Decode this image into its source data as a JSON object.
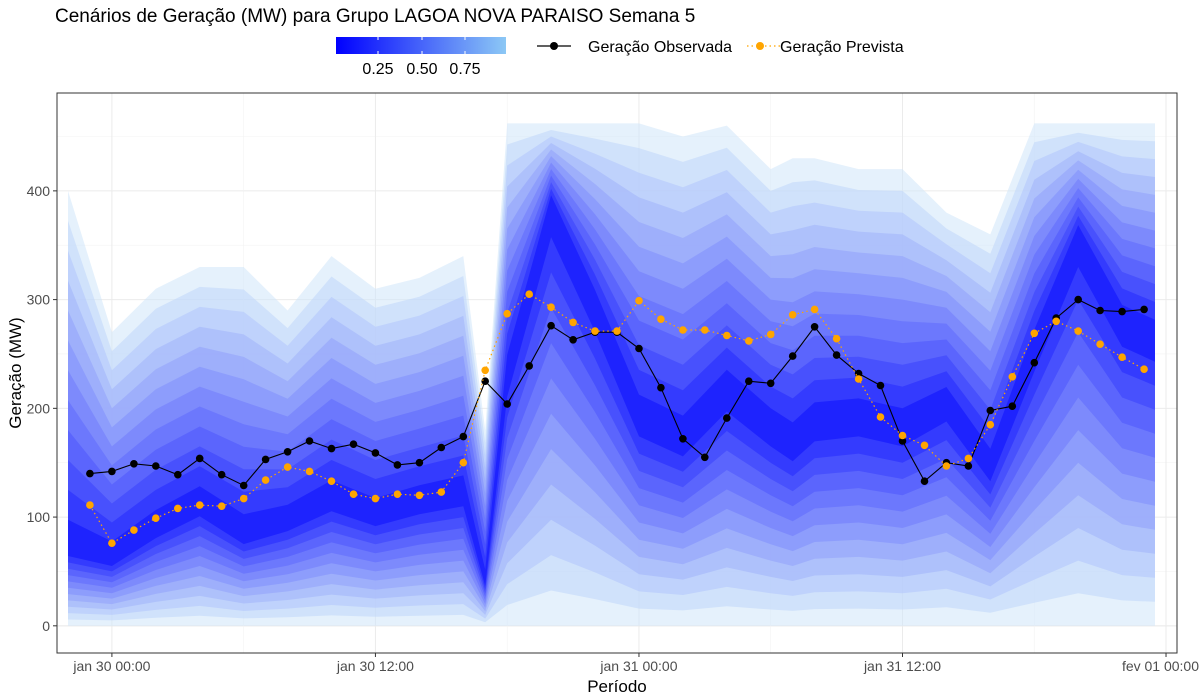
{
  "chart_data": {
    "type": "line",
    "title": "Cenários de Geração (MW) para Grupo LAGOA NOVA PARAISO Semana 5",
    "xlabel": "Período",
    "ylabel": "Geração (MW)",
    "ylim": [
      -25,
      490
    ],
    "y_ticks": [
      0,
      100,
      200,
      300,
      400
    ],
    "x_range_hours": [
      -2.5,
      48.5
    ],
    "x_ticks": [
      {
        "hour": 0,
        "label": "jan 30 00:00"
      },
      {
        "hour": 12,
        "label": "jan 30 12:00"
      },
      {
        "hour": 24,
        "label": "jan 31 00:00"
      },
      {
        "hour": 36,
        "label": "jan 31 12:00"
      },
      {
        "hour": 48,
        "label": "fev 01 00:00"
      }
    ],
    "grid": true,
    "legend": {
      "placement": "top",
      "colorbar_ticks": [
        "0.25",
        "0.50",
        "0.75"
      ],
      "colorbar_colors": [
        "#0000ff",
        "#8cc8f5"
      ]
    },
    "series": [
      {
        "name": "Geração Observada",
        "color": "#000000",
        "style": "solid",
        "points": [
          [
            -1.0,
            140
          ],
          [
            0,
            142
          ],
          [
            1,
            149
          ],
          [
            2,
            147
          ],
          [
            3,
            139
          ],
          [
            4,
            154
          ],
          [
            5,
            139
          ],
          [
            6,
            129
          ],
          [
            7,
            153
          ],
          [
            8,
            160
          ],
          [
            9,
            170
          ],
          [
            10,
            163
          ],
          [
            11,
            167
          ],
          [
            12,
            159
          ],
          [
            13,
            148
          ],
          [
            14,
            150
          ],
          [
            15,
            164
          ],
          [
            16,
            174
          ],
          [
            17,
            225
          ],
          [
            18,
            204
          ],
          [
            19,
            239
          ],
          [
            20,
            276
          ],
          [
            21,
            263
          ],
          [
            22,
            270
          ],
          [
            23,
            270
          ],
          [
            24,
            255
          ],
          [
            25,
            219
          ],
          [
            26,
            172
          ],
          [
            27,
            155
          ],
          [
            28,
            191
          ],
          [
            29,
            225
          ],
          [
            30,
            223
          ],
          [
            31,
            248
          ],
          [
            32,
            275
          ],
          [
            33,
            249
          ],
          [
            34,
            232
          ],
          [
            35,
            221
          ],
          [
            36,
            170
          ],
          [
            37,
            133
          ],
          [
            38,
            150
          ],
          [
            39,
            147
          ],
          [
            40,
            198
          ],
          [
            41,
            202
          ],
          [
            42,
            242
          ],
          [
            43,
            283
          ],
          [
            44,
            300
          ],
          [
            45,
            290
          ],
          [
            46,
            289
          ],
          [
            47,
            291
          ]
        ]
      },
      {
        "name": "Geração Prevista",
        "color": "#ffa500",
        "style": "dotted",
        "points": [
          [
            -1.0,
            111
          ],
          [
            0,
            76
          ],
          [
            1,
            88
          ],
          [
            2,
            99
          ],
          [
            3,
            108
          ],
          [
            4,
            111
          ],
          [
            5,
            110
          ],
          [
            6,
            117
          ],
          [
            7,
            134
          ],
          [
            8,
            146
          ],
          [
            9,
            142
          ],
          [
            10,
            133
          ],
          [
            11,
            121
          ],
          [
            12,
            117
          ],
          [
            13,
            121
          ],
          [
            14,
            120
          ],
          [
            15,
            123
          ],
          [
            16,
            150
          ],
          [
            17,
            235
          ],
          [
            18,
            287
          ],
          [
            19,
            305
          ],
          [
            20,
            293
          ],
          [
            21,
            279
          ],
          [
            22,
            271
          ],
          [
            23,
            271
          ],
          [
            24,
            299
          ],
          [
            25,
            282
          ],
          [
            26,
            272
          ],
          [
            27,
            272
          ],
          [
            28,
            267
          ],
          [
            29,
            262
          ],
          [
            30,
            268
          ],
          [
            31,
            286
          ],
          [
            32,
            291
          ],
          [
            33,
            264
          ],
          [
            34,
            227
          ],
          [
            35,
            192
          ],
          [
            36,
            175
          ],
          [
            37,
            166
          ],
          [
            38,
            147
          ],
          [
            39,
            154
          ],
          [
            40,
            185
          ],
          [
            41,
            229
          ],
          [
            42,
            269
          ],
          [
            43,
            280
          ],
          [
            44,
            271
          ],
          [
            45,
            259
          ],
          [
            46,
            247
          ],
          [
            47,
            236
          ]
        ]
      }
    ],
    "scenario_band": {
      "hours": [
        -2,
        0,
        2,
        4,
        6,
        8,
        10,
        12,
        14,
        16,
        17,
        18,
        20,
        22,
        24,
        26,
        28,
        30,
        31,
        32,
        34,
        36,
        38,
        40,
        42,
        44,
        46,
        47.5
      ],
      "median": [
        70,
        60,
        88,
        110,
        82,
        95,
        115,
        100,
        112,
        120,
        40,
        230,
        390,
        295,
        190,
        170,
        215,
        180,
        165,
        185,
        190,
        180,
        205,
        145,
        255,
        360,
        280,
        265
      ],
      "max": [
        400,
        270,
        310,
        330,
        330,
        290,
        340,
        310,
        320,
        340,
        180,
        462,
        462,
        462,
        462,
        450,
        460,
        420,
        430,
        430,
        420,
        420,
        380,
        360,
        462,
        462,
        462,
        462
      ],
      "min": [
        0,
        0,
        0,
        0,
        0,
        0,
        0,
        0,
        0,
        0,
        0,
        0,
        0,
        0,
        0,
        0,
        0,
        0,
        0,
        0,
        0,
        0,
        0,
        0,
        0,
        0,
        0,
        0
      ],
      "band_top_cap": 462
    }
  }
}
